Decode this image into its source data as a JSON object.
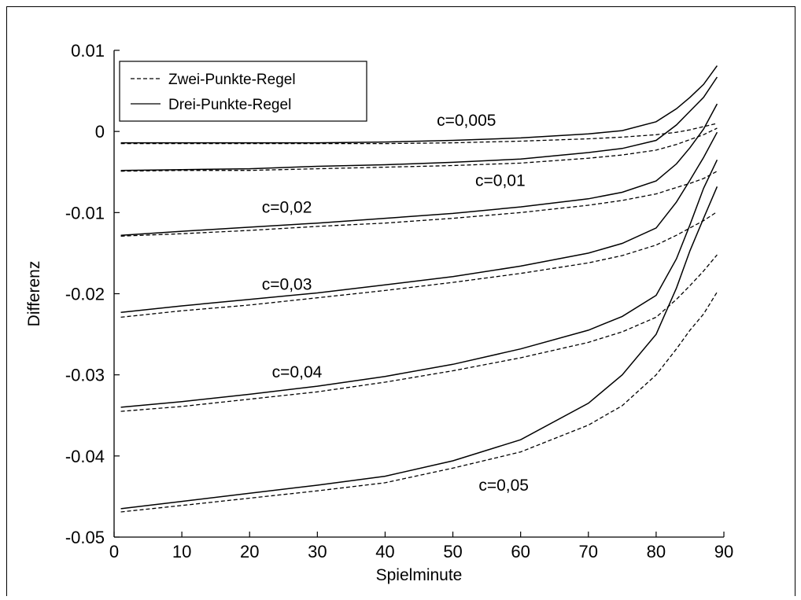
{
  "chart_data": {
    "type": "line",
    "title": "",
    "xlabel": "Spielminute",
    "ylabel": "Differenz",
    "xlim": [
      0,
      90
    ],
    "ylim": [
      -0.05,
      0.01
    ],
    "xticks": [
      0,
      10,
      20,
      30,
      40,
      50,
      60,
      70,
      80,
      90
    ],
    "xtick_labels": [
      "0",
      "10",
      "20",
      "30",
      "40",
      "50",
      "60",
      "70",
      "80",
      "90"
    ],
    "yticks": [
      0.01,
      0,
      -0.01,
      -0.02,
      -0.03,
      -0.04,
      -0.05
    ],
    "ytick_labels": [
      "0.01",
      "0",
      "-0.01",
      "-0.02",
      "-0.03",
      "-0.04",
      "-0.05"
    ],
    "grid": false,
    "legend": {
      "position": "top-left",
      "entries": [
        {
          "label": "Zwei-Punkte-Regel",
          "style": "dashed"
        },
        {
          "label": "Drei-Punkte-Regel",
          "style": "solid"
        }
      ]
    },
    "x": [
      1,
      10,
      20,
      30,
      40,
      50,
      60,
      70,
      75,
      80,
      83,
      85,
      87,
      89
    ],
    "groups": [
      {
        "label": "c=0,005",
        "drei": [
          -0.0014,
          -0.0014,
          -0.0014,
          -0.0014,
          -0.0013,
          -0.0011,
          -0.0008,
          -0.0003,
          0.0001,
          0.0012,
          0.0028,
          0.0042,
          0.0058,
          0.0081
        ],
        "zwei": [
          -0.0015,
          -0.0015,
          -0.0015,
          -0.0015,
          -0.0015,
          -0.0014,
          -0.0012,
          -0.0009,
          -0.0007,
          -0.0004,
          -0.0001,
          0.0002,
          0.0006,
          0.001
        ]
      },
      {
        "label": "c=0,01",
        "drei": [
          -0.0048,
          -0.0047,
          -0.0046,
          -0.0043,
          -0.0041,
          -0.0038,
          -0.0034,
          -0.0026,
          -0.0021,
          -0.0011,
          0.0008,
          0.0025,
          0.0042,
          0.0067
        ],
        "zwei": [
          -0.0049,
          -0.0048,
          -0.0048,
          -0.0046,
          -0.0044,
          -0.0042,
          -0.0039,
          -0.0033,
          -0.0029,
          -0.0023,
          -0.0016,
          -0.001,
          -0.0004,
          0.0004
        ]
      },
      {
        "label": "c=0,02",
        "drei": [
          -0.0128,
          -0.0123,
          -0.0118,
          -0.0113,
          -0.0107,
          -0.0101,
          -0.0093,
          -0.0083,
          -0.0075,
          -0.0061,
          -0.004,
          -0.002,
          0.0003,
          0.0034
        ],
        "zwei": [
          -0.0129,
          -0.0126,
          -0.0122,
          -0.0117,
          -0.0113,
          -0.0107,
          -0.01,
          -0.0091,
          -0.0085,
          -0.0077,
          -0.0069,
          -0.0064,
          -0.0058,
          -0.0049
        ]
      },
      {
        "label": "c=0,03",
        "drei": [
          -0.0223,
          -0.0215,
          -0.0207,
          -0.0199,
          -0.0189,
          -0.0179,
          -0.0166,
          -0.015,
          -0.0138,
          -0.0119,
          -0.0087,
          -0.006,
          -0.0032,
          -0.0001
        ],
        "zwei": [
          -0.0229,
          -0.0221,
          -0.0214,
          -0.0205,
          -0.0196,
          -0.0186,
          -0.0175,
          -0.0162,
          -0.0153,
          -0.014,
          -0.0128,
          -0.0119,
          -0.011,
          -0.0099
        ]
      },
      {
        "label": "c=0,04",
        "drei": [
          -0.034,
          -0.0333,
          -0.0324,
          -0.0314,
          -0.0302,
          -0.0287,
          -0.0268,
          -0.0245,
          -0.0228,
          -0.0202,
          -0.0157,
          -0.0115,
          -0.007,
          -0.0035
        ],
        "zwei": [
          -0.0345,
          -0.0339,
          -0.033,
          -0.0321,
          -0.0309,
          -0.0295,
          -0.0279,
          -0.026,
          -0.0247,
          -0.0229,
          -0.0207,
          -0.019,
          -0.0172,
          -0.0152
        ]
      },
      {
        "label": "c=0,05",
        "drei": [
          -0.0465,
          -0.0456,
          -0.0446,
          -0.0436,
          -0.0425,
          -0.0406,
          -0.038,
          -0.0335,
          -0.03,
          -0.025,
          -0.0193,
          -0.0147,
          -0.0107,
          -0.0068
        ],
        "zwei": [
          -0.0469,
          -0.0461,
          -0.0452,
          -0.0443,
          -0.0433,
          -0.0415,
          -0.0395,
          -0.0362,
          -0.0338,
          -0.03,
          -0.0268,
          -0.0245,
          -0.0225,
          -0.0198
        ]
      }
    ],
    "annotations": [
      {
        "text": "c=0,005",
        "x": 52,
        "y": 0.0007
      },
      {
        "text": "c=0,01",
        "x": 57,
        "y": -0.0067
      },
      {
        "text": "c=0,02",
        "x": 25.5,
        "y": -0.01
      },
      {
        "text": "c=0,03",
        "x": 25.5,
        "y": -0.0195
      },
      {
        "text": "c=0,04",
        "x": 27,
        "y": -0.0303
      },
      {
        "text": "c=0,05",
        "x": 57.5,
        "y": -0.0443
      }
    ]
  }
}
